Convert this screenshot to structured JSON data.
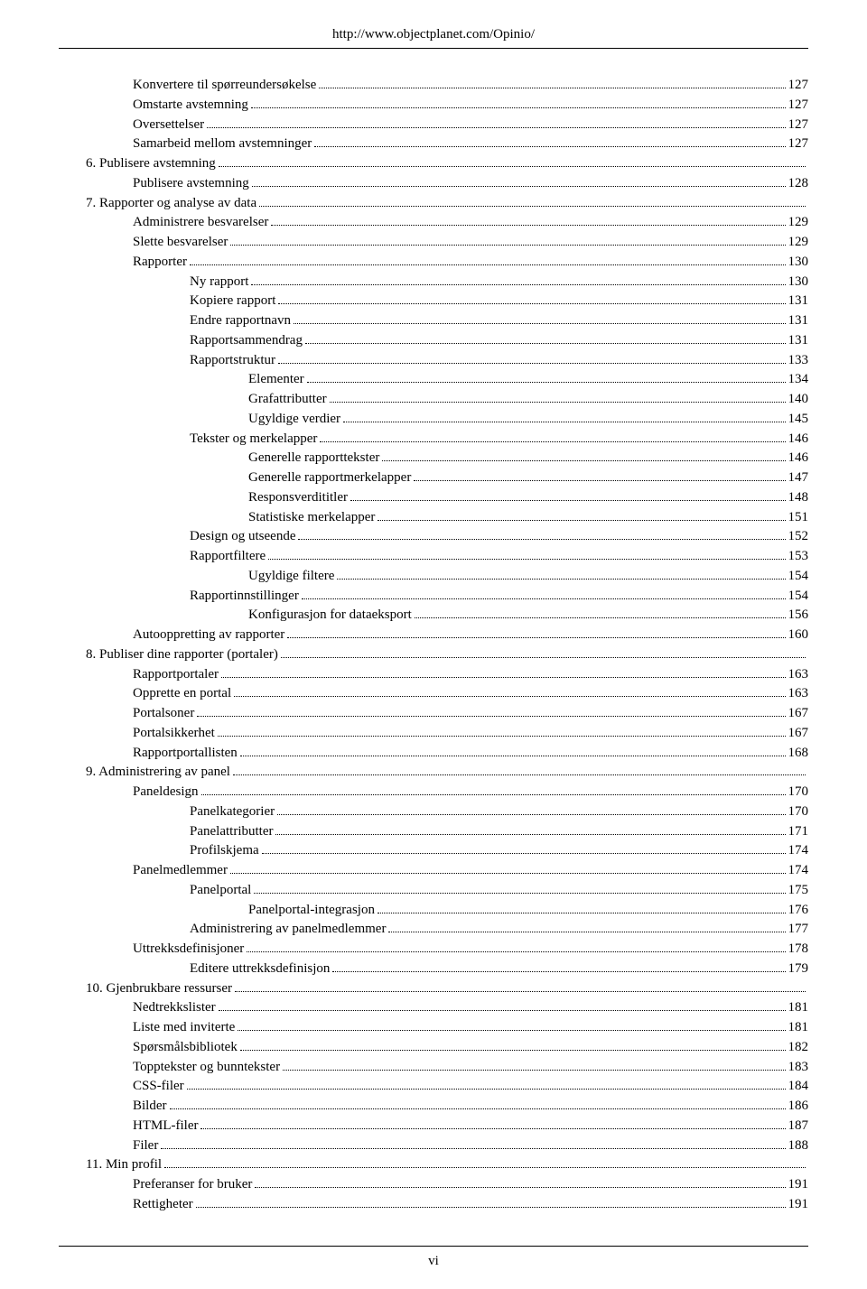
{
  "header_url": "http://www.objectplanet.com/Opinio/",
  "footer_pagenum": "vi",
  "toc": [
    {
      "indent": 2,
      "label": "Konvertere til spørreundersøkelse",
      "page": "127"
    },
    {
      "indent": 2,
      "label": "Omstarte avstemning",
      "page": "127"
    },
    {
      "indent": 2,
      "label": "Oversettelser",
      "page": "127"
    },
    {
      "indent": 2,
      "label": "Samarbeid mellom avstemninger",
      "page": "127"
    },
    {
      "indent": 1,
      "label": "6. Publisere avstemning",
      "page": ""
    },
    {
      "indent": 2,
      "label": "Publisere avstemning",
      "page": "128"
    },
    {
      "indent": 1,
      "label": "7. Rapporter og analyse av data",
      "page": ""
    },
    {
      "indent": 2,
      "label": "Administrere besvarelser",
      "page": "129"
    },
    {
      "indent": 2,
      "label": "Slette besvarelser",
      "page": "129"
    },
    {
      "indent": 2,
      "label": "Rapporter",
      "page": "130"
    },
    {
      "indent": 3,
      "label": "Ny rapport",
      "page": "130"
    },
    {
      "indent": 3,
      "label": "Kopiere rapport",
      "page": "131"
    },
    {
      "indent": 3,
      "label": "Endre rapportnavn",
      "page": "131"
    },
    {
      "indent": 3,
      "label": "Rapportsammendrag",
      "page": "131"
    },
    {
      "indent": 3,
      "label": "Rapportstruktur",
      "page": "133"
    },
    {
      "indent": 4,
      "label": "Elementer",
      "page": "134"
    },
    {
      "indent": 4,
      "label": "Grafattributter",
      "page": "140"
    },
    {
      "indent": 4,
      "label": "Ugyldige verdier",
      "page": "145"
    },
    {
      "indent": 3,
      "label": "Tekster og merkelapper",
      "page": "146"
    },
    {
      "indent": 4,
      "label": "Generelle rapporttekster",
      "page": "146"
    },
    {
      "indent": 4,
      "label": "Generelle rapportmerkelapper",
      "page": "147"
    },
    {
      "indent": 4,
      "label": "Responsverdititler",
      "page": "148"
    },
    {
      "indent": 4,
      "label": "Statistiske merkelapper",
      "page": "151"
    },
    {
      "indent": 3,
      "label": "Design og utseende",
      "page": "152"
    },
    {
      "indent": 3,
      "label": "Rapportfiltere",
      "page": "153"
    },
    {
      "indent": 4,
      "label": "Ugyldige filtere",
      "page": "154"
    },
    {
      "indent": 3,
      "label": "Rapportinnstillinger",
      "page": "154"
    },
    {
      "indent": 4,
      "label": "Konfigurasjon for dataeksport",
      "page": "156"
    },
    {
      "indent": 2,
      "label": "Autooppretting av rapporter",
      "page": "160"
    },
    {
      "indent": 1,
      "label": "8. Publiser dine rapporter (portaler)",
      "page": ""
    },
    {
      "indent": 2,
      "label": "Rapportportaler",
      "page": "163"
    },
    {
      "indent": 2,
      "label": "Opprette en portal",
      "page": "163"
    },
    {
      "indent": 2,
      "label": "Portalsoner",
      "page": "167"
    },
    {
      "indent": 2,
      "label": "Portalsikkerhet",
      "page": "167"
    },
    {
      "indent": 2,
      "label": "Rapportportallisten",
      "page": "168"
    },
    {
      "indent": 1,
      "label": "9. Administrering av panel",
      "page": ""
    },
    {
      "indent": 2,
      "label": "Paneldesign",
      "page": "170"
    },
    {
      "indent": 3,
      "label": "Panelkategorier",
      "page": "170"
    },
    {
      "indent": 3,
      "label": "Panelattributter",
      "page": "171"
    },
    {
      "indent": 3,
      "label": "Profilskjema",
      "page": "174"
    },
    {
      "indent": 2,
      "label": "Panelmedlemmer",
      "page": "174"
    },
    {
      "indent": 3,
      "label": "Panelportal",
      "page": "175"
    },
    {
      "indent": 4,
      "label": "Panelportal-integrasjon",
      "page": "176"
    },
    {
      "indent": 3,
      "label": "Administrering av panelmedlemmer",
      "page": "177"
    },
    {
      "indent": 2,
      "label": "Uttrekksdefinisjoner",
      "page": "178"
    },
    {
      "indent": 3,
      "label": "Editere uttrekksdefinisjon",
      "page": "179"
    },
    {
      "indent": 1,
      "label": "10. Gjenbrukbare ressurser",
      "page": ""
    },
    {
      "indent": 2,
      "label": "Nedtrekkslister",
      "page": "181"
    },
    {
      "indent": 2,
      "label": "Liste med inviterte",
      "page": "181"
    },
    {
      "indent": 2,
      "label": "Spørsmålsbibliotek",
      "page": "182"
    },
    {
      "indent": 2,
      "label": "Topptekster og bunntekster",
      "page": "183"
    },
    {
      "indent": 2,
      "label": "CSS-filer",
      "page": "184"
    },
    {
      "indent": 2,
      "label": "Bilder",
      "page": "186"
    },
    {
      "indent": 2,
      "label": "HTML-filer",
      "page": "187"
    },
    {
      "indent": 2,
      "label": "Filer",
      "page": "188"
    },
    {
      "indent": 1,
      "label": "11. Min profil",
      "page": ""
    },
    {
      "indent": 2,
      "label": "Preferanser for bruker",
      "page": "191"
    },
    {
      "indent": 2,
      "label": "Rettigheter",
      "page": "191"
    }
  ]
}
